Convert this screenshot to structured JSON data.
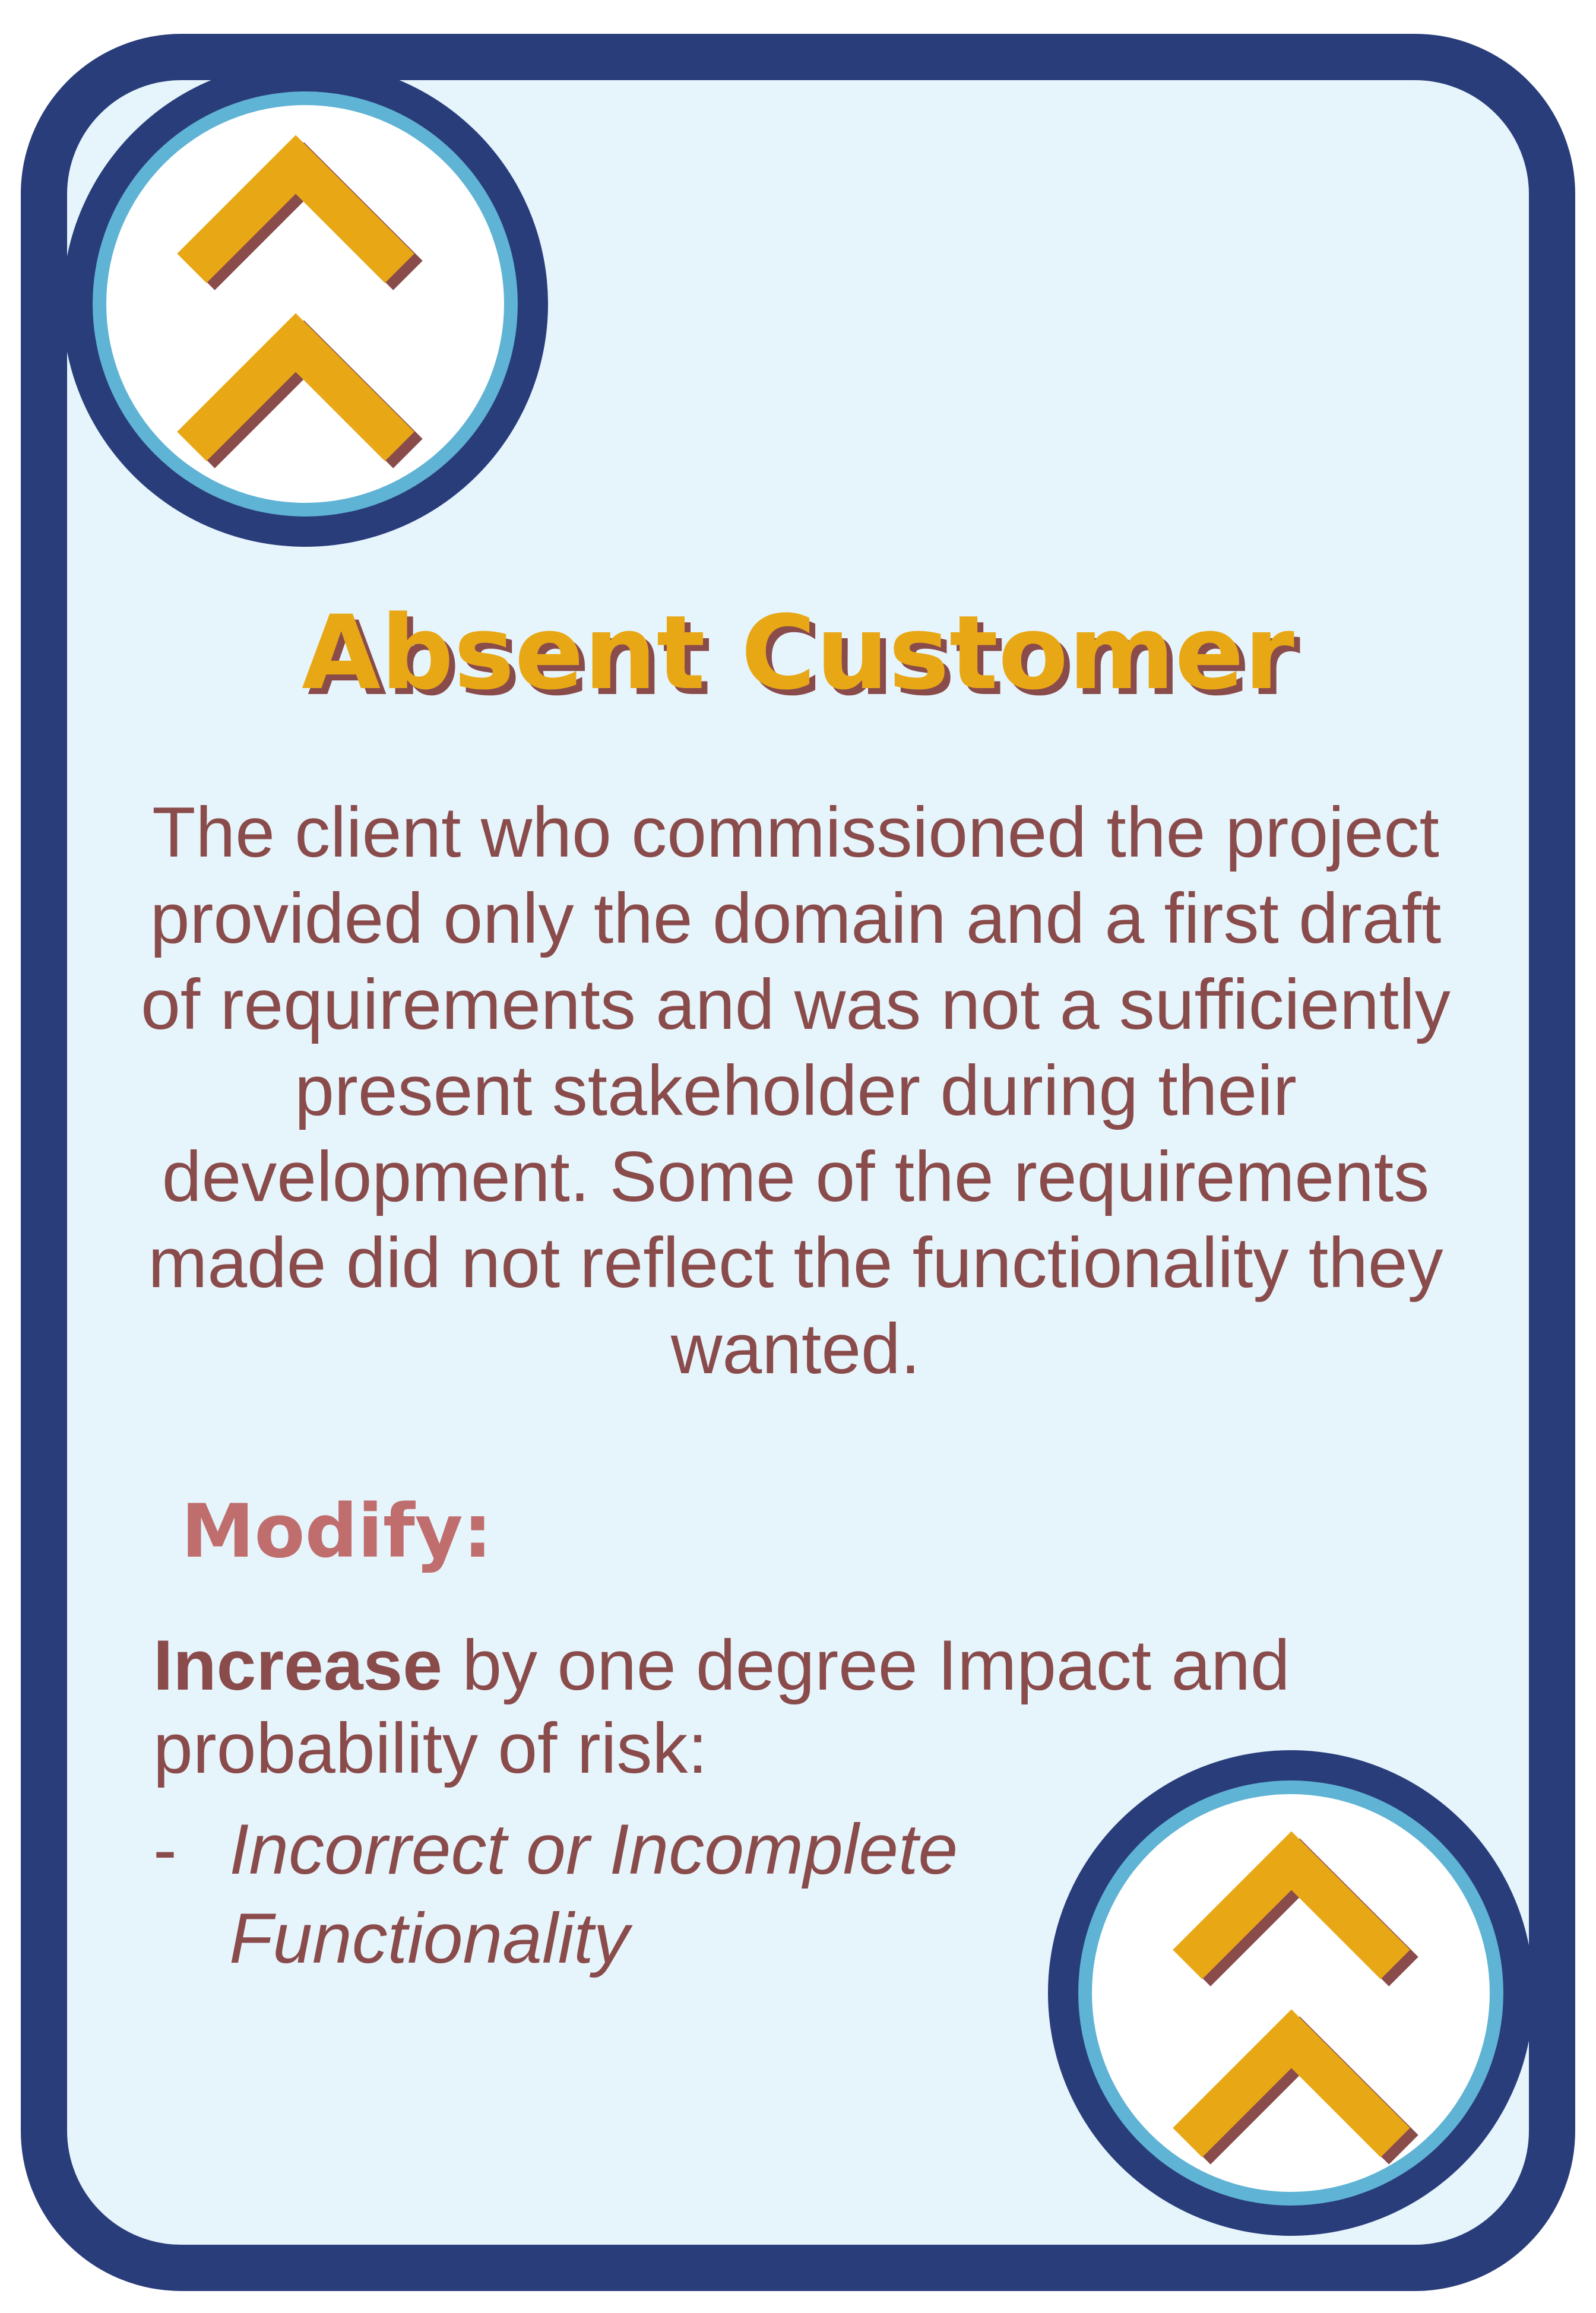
{
  "card": {
    "title": "Absent Customer",
    "description": "The client who commissioned the project provided only the domain and a first draft of requirements and was not a sufficiently present stakeholder during their development. Some of the requirements made did not reflect the functionality they wanted.",
    "modify_heading": "Modify:",
    "modify_action": "Increase",
    "modify_rest": " by one degree Impact and probability of risk:",
    "risk_bullet": "-",
    "risk_item": "Incorrect or Incomplete Functionality"
  },
  "badges": {
    "top_icon": "double-chevron-up-icon",
    "bottom_icon": "double-chevron-up-icon"
  },
  "colors": {
    "frame": "#293d7a",
    "badge_ring": "#5fb3d4",
    "background": "#e6f4fc",
    "title": "#e8a816",
    "text": "#8a4b4b",
    "heading": "#c06d6d",
    "chevron": "#e8a816",
    "chevron_shadow": "#8a4b4b"
  }
}
